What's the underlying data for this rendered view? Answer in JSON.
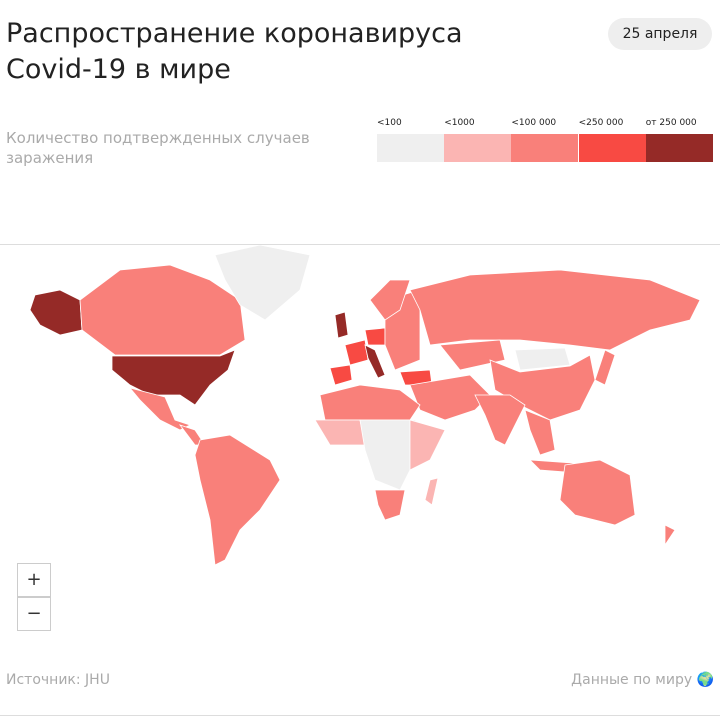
{
  "header": {
    "title_lines": [
      "Распространение коронавируса",
      "Covid-19 в мире"
    ],
    "date": "25 апреля"
  },
  "subtitle": "Количество подтвержденных случаев заражения",
  "legend": {
    "items": [
      {
        "label": "<100",
        "color": "#efefef"
      },
      {
        "label": "<1000",
        "color": "#fbb5b3"
      },
      {
        "label": "<100 000",
        "color": "#f9807a"
      },
      {
        "label": "<250 000",
        "color": "#f84a43"
      },
      {
        "label": "от 250 000",
        "color": "#952a27"
      }
    ]
  },
  "zoom": {
    "in": "+",
    "out": "−"
  },
  "footer": {
    "source": "Источник: JHU",
    "link": "Данные по миру 🌍"
  }
}
